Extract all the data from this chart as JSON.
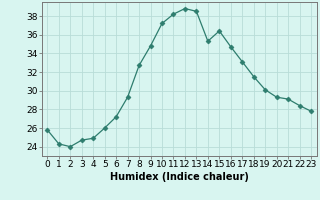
{
  "x": [
    0,
    1,
    2,
    3,
    4,
    5,
    6,
    7,
    8,
    9,
    10,
    11,
    12,
    13,
    14,
    15,
    16,
    17,
    18,
    19,
    20,
    21,
    22,
    23
  ],
  "y": [
    25.8,
    24.3,
    24.0,
    24.7,
    24.9,
    26.0,
    27.2,
    29.3,
    32.7,
    34.8,
    37.2,
    38.2,
    38.8,
    38.5,
    35.3,
    36.4,
    34.7,
    33.1,
    31.5,
    30.1,
    29.3,
    29.1,
    28.4,
    27.8
  ],
  "line_color": "#2e7d6e",
  "marker": "D",
  "marker_size": 2.5,
  "bg_color": "#d8f5f0",
  "grid_color": "#b8ddd8",
  "ylabel_ticks": [
    24,
    26,
    28,
    30,
    32,
    34,
    36,
    38
  ],
  "ylim": [
    23.0,
    39.5
  ],
  "xlim": [
    -0.5,
    23.5
  ],
  "xlabel": "Humidex (Indice chaleur)",
  "xlabel_fontsize": 7,
  "tick_fontsize": 6.5
}
